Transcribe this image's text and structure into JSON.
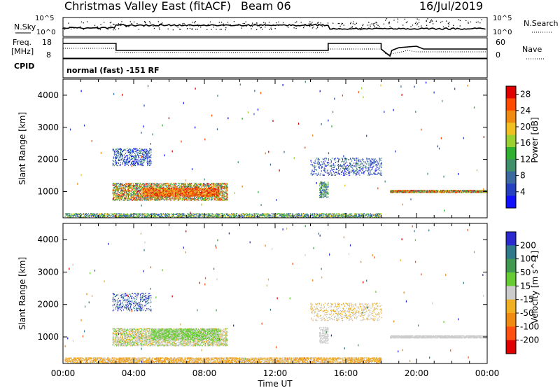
{
  "header": {
    "title": "Christmas Valley East (fitACF)",
    "beam": "Beam 06",
    "date": "16/Jul/2019"
  },
  "status_panels": {
    "nsky_label": "N.Sky",
    "nsearch_label": "N.Search",
    "nsky_ticks": [
      "10^5",
      "10^0"
    ],
    "nsearch_ticks": [
      "10^5",
      "10^0"
    ],
    "freq_label_1": "Freq.",
    "freq_label_2": "[MHz]",
    "freq_ticks": [
      "18",
      "8"
    ],
    "nave_label": "Nave",
    "nave_ticks": [
      "60",
      "0"
    ],
    "cpid_label": "CPID",
    "cpid_text": "normal (fast) -151 RF"
  },
  "chart_data": [
    {
      "type": "heatmap",
      "name": "power",
      "xlabel": "",
      "ylabel": "Slant Range [km]",
      "x_ticks": [],
      "y_ticks": [
        "1000",
        "2000",
        "3000",
        "4000"
      ],
      "y_tick_values": [
        1000,
        2000,
        3000,
        4000
      ],
      "ylim": [
        180,
        4500
      ],
      "xlim_hours": [
        0,
        24
      ],
      "colorbar": {
        "label": "Power [dB]",
        "ticks": [
          "4",
          "8",
          "12",
          "16",
          "20",
          "24",
          "28"
        ],
        "tick_values": [
          4,
          8,
          12,
          16,
          20,
          24,
          28
        ],
        "range": [
          0,
          30
        ],
        "colors": [
          "#1010ff",
          "#2540c0",
          "#3a6aa0",
          "#3e8f6a",
          "#2fb030",
          "#9ad030",
          "#f0c020",
          "#f08a10",
          "#ff4a00",
          "#e00000"
        ]
      }
    },
    {
      "type": "heatmap",
      "name": "velocity",
      "xlabel": "Time UT",
      "ylabel": "Slant Range [km]",
      "x_ticks": [
        "00:00",
        "04:00",
        "08:00",
        "12:00",
        "16:00",
        "20:00",
        "00:00"
      ],
      "x_tick_values": [
        0,
        4,
        8,
        12,
        16,
        20,
        24
      ],
      "y_ticks": [
        "1000",
        "2000",
        "3000",
        "4000"
      ],
      "y_tick_values": [
        1000,
        2000,
        3000,
        4000
      ],
      "ylim": [
        180,
        4500
      ],
      "xlim_hours": [
        0,
        24
      ],
      "colorbar": {
        "label": "Velocity [m s^-1]",
        "ticks": [
          "200",
          "100",
          "50",
          "15",
          "-15",
          "-50",
          "-100",
          "-200"
        ],
        "tick_values": [
          200,
          100,
          50,
          15,
          -15,
          -50,
          -100,
          -200
        ],
        "colors": [
          "#2a2ad0",
          "#2f7a8a",
          "#3f9a50",
          "#66cc33",
          "#cccccc",
          "#f0b020",
          "#f08a10",
          "#ff5010",
          "#e00000"
        ]
      }
    }
  ]
}
